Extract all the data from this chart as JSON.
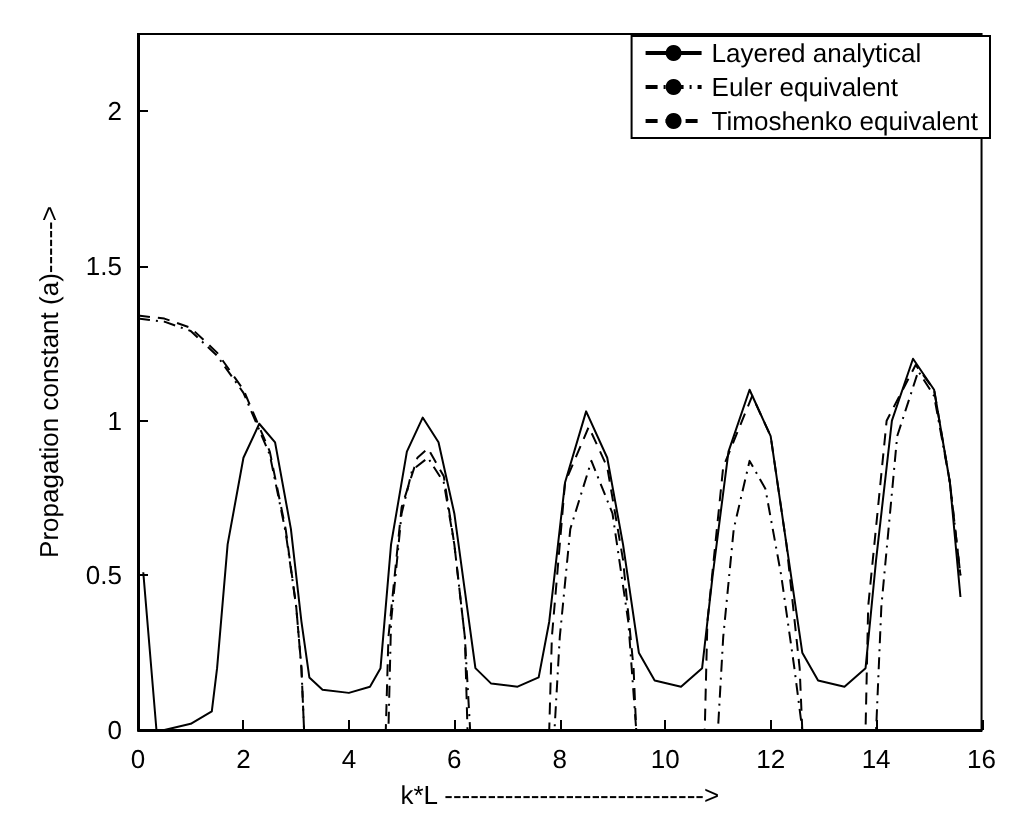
{
  "chart_data": {
    "type": "line",
    "xlabel": "k*L ------------------------------>",
    "ylabel": "Propagation constant (a)------>",
    "xlim": [
      0,
      16
    ],
    "xticks": [
      0,
      2,
      4,
      6,
      8,
      10,
      12,
      14,
      16
    ],
    "ylim": [
      0,
      2.25
    ],
    "yticks": [
      0,
      0.5,
      1,
      1.5,
      2
    ],
    "grid": false,
    "legend": "top right",
    "marker": "none",
    "series": [
      {
        "name": "Layered analytical",
        "color": "#000000",
        "line_style": "solid",
        "x": [
          0.1,
          0.35,
          0.5,
          1,
          1.4,
          1.5,
          1.7,
          2,
          2.3,
          2.6,
          2.9,
          3.1,
          3.25,
          3.5,
          4,
          4.4,
          4.6,
          4.8,
          5.1,
          5.4,
          5.7,
          6,
          6.2,
          6.4,
          6.7,
          7.2,
          7.6,
          7.8,
          8.1,
          8.5,
          8.9,
          9.2,
          9.5,
          9.8,
          10.3,
          10.7,
          10.9,
          11.2,
          11.6,
          12,
          12.3,
          12.6,
          12.9,
          13.4,
          13.8,
          14,
          14.3,
          14.7,
          15.1,
          15.4,
          15.6
        ],
        "values": [
          0.51,
          0,
          0,
          0.02,
          0.06,
          0.2,
          0.6,
          0.88,
          0.99,
          0.93,
          0.65,
          0.35,
          0.17,
          0.13,
          0.12,
          0.14,
          0.2,
          0.6,
          0.9,
          1.01,
          0.93,
          0.7,
          0.45,
          0.2,
          0.15,
          0.14,
          0.17,
          0.35,
          0.8,
          1.03,
          0.88,
          0.6,
          0.25,
          0.16,
          0.14,
          0.2,
          0.5,
          0.9,
          1.1,
          0.95,
          0.6,
          0.25,
          0.16,
          0.14,
          0.2,
          0.55,
          1,
          1.2,
          1.1,
          0.8,
          0.43
        ]
      },
      {
        "name": "Euler equivalent",
        "color": "#000000",
        "line_style": "dashdot",
        "x": [
          0,
          0.5,
          1,
          1.5,
          2,
          2.5,
          2.8,
          3,
          3.1,
          3.15,
          4.75,
          4.8,
          5,
          5.2,
          5.5,
          5.8,
          6,
          6.2,
          6.3,
          7.9,
          8,
          8.2,
          8.6,
          9,
          9.3,
          9.45,
          11,
          11.1,
          11.3,
          11.6,
          11.9,
          12.2,
          12.45,
          12.6,
          14,
          14.1,
          14.4,
          14.8,
          15.1,
          15.4,
          15.6
        ],
        "values": [
          1.33,
          1.32,
          1.29,
          1.21,
          1.09,
          0.89,
          0.64,
          0.4,
          0.2,
          0,
          0,
          0.35,
          0.7,
          0.84,
          0.88,
          0.8,
          0.6,
          0.3,
          0,
          0,
          0.3,
          0.65,
          0.87,
          0.7,
          0.35,
          0,
          0,
          0.3,
          0.65,
          0.87,
          0.78,
          0.5,
          0.2,
          0,
          0,
          0.4,
          0.95,
          1.16,
          1.08,
          0.8,
          0.5
        ]
      },
      {
        "name": "Timoshenko equivalent",
        "color": "#000000",
        "line_style": "dashed",
        "x": [
          0,
          0.5,
          1,
          1.5,
          2,
          2.5,
          2.8,
          3,
          3.1,
          3.15,
          4.7,
          4.75,
          5,
          5.3,
          5.5,
          5.8,
          6,
          6.2,
          6.25,
          7.8,
          7.85,
          8.1,
          8.55,
          8.9,
          9.2,
          9.4,
          9.45,
          10.75,
          10.8,
          11.1,
          11.65,
          12,
          12.3,
          12.55,
          12.6,
          13.8,
          13.85,
          14.2,
          14.75,
          15.1,
          15.4,
          15.6
        ],
        "values": [
          1.34,
          1.33,
          1.3,
          1.22,
          1.1,
          0.9,
          0.65,
          0.4,
          0.2,
          0,
          0,
          0.3,
          0.72,
          0.88,
          0.91,
          0.82,
          0.6,
          0.3,
          0,
          0,
          0.3,
          0.8,
          0.98,
          0.85,
          0.55,
          0.2,
          0,
          0,
          0.35,
          0.85,
          1.08,
          0.95,
          0.6,
          0.2,
          0,
          0,
          0.4,
          1.0,
          1.18,
          1.1,
          0.8,
          0.5
        ]
      }
    ]
  }
}
